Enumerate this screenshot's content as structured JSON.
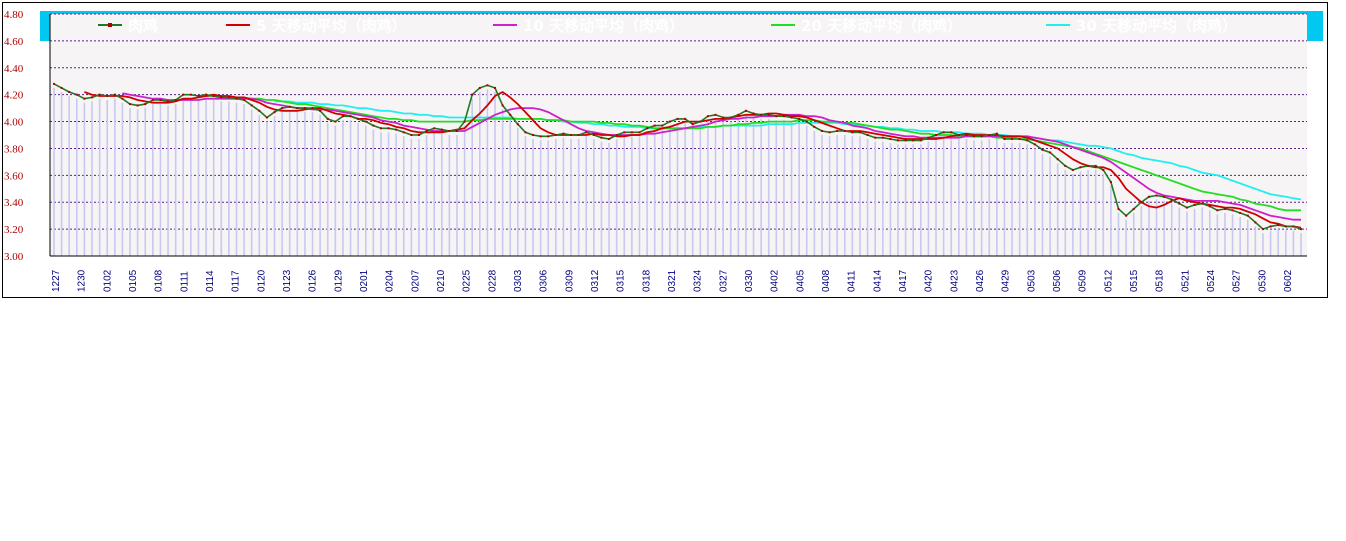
{
  "chart_data": {
    "type": "line",
    "title": "",
    "xlabel": "",
    "ylabel": "",
    "ylim": [
      3.0,
      4.8
    ],
    "y_ticks": [
      "3.00",
      "3.20",
      "3.40",
      "3.60",
      "3.80",
      "4.00",
      "4.20",
      "4.40",
      "4.60",
      "4.80"
    ],
    "x_tick_labels": [
      "1227",
      "1230",
      "0102",
      "0105",
      "0108",
      "0111",
      "0114",
      "0117",
      "0120",
      "0123",
      "0126",
      "0129",
      "0201",
      "0204",
      "0207",
      "0210",
      "0225",
      "0228",
      "0303",
      "0306",
      "0309",
      "0312",
      "0315",
      "0318",
      "0321",
      "0324",
      "0327",
      "0330",
      "0402",
      "0405",
      "0408",
      "0411",
      "0414",
      "0417",
      "0420",
      "0423",
      "0426",
      "0429",
      "0503",
      "0506",
      "0509",
      "0512",
      "0515",
      "0518",
      "0521",
      "0524",
      "0527",
      "0530",
      "0602"
    ],
    "grid": true,
    "legend_position": "top",
    "colors": {
      "legend_bg": "#00c8f0",
      "price": "#1f7a1f",
      "price_marker": "#b00000",
      "ma5": "#d00000",
      "ma10": "#cc22cc",
      "ma20": "#22dd22",
      "ma30": "#22eeee",
      "bars": "#c8c8f0",
      "grid": "#5a1f8a"
    },
    "series": [
      {
        "name": "肉鸡",
        "values": [
          4.28,
          4.25,
          4.22,
          4.2,
          4.17,
          4.18,
          4.2,
          4.19,
          4.2,
          4.17,
          4.13,
          4.12,
          4.13,
          4.16,
          4.16,
          4.15,
          4.16,
          4.2,
          4.2,
          4.19,
          4.2,
          4.19,
          4.18,
          4.18,
          4.17,
          4.16,
          4.12,
          4.08,
          4.03,
          4.07,
          4.1,
          4.11,
          4.1,
          4.1,
          4.1,
          4.08,
          4.02,
          4.0,
          4.04,
          4.04,
          4.02,
          4.0,
          3.97,
          3.95,
          3.95,
          3.94,
          3.92,
          3.9,
          3.9,
          3.93,
          3.95,
          3.94,
          3.93,
          3.93,
          4.0,
          4.2,
          4.25,
          4.27,
          4.25,
          4.12,
          4.05,
          3.98,
          3.92,
          3.9,
          3.89,
          3.89,
          3.9,
          3.91,
          3.9,
          3.9,
          3.92,
          3.9,
          3.88,
          3.87,
          3.9,
          3.92,
          3.92,
          3.92,
          3.95,
          3.97,
          3.97,
          4.0,
          4.02,
          4.02,
          3.98,
          4.0,
          4.04,
          4.05,
          4.03,
          4.03,
          4.05,
          4.08,
          4.06,
          4.05,
          4.05,
          4.04,
          4.04,
          4.03,
          4.02,
          4.0,
          3.96,
          3.93,
          3.92,
          3.93,
          3.93,
          3.92,
          3.92,
          3.9,
          3.88,
          3.88,
          3.87,
          3.86,
          3.86,
          3.86,
          3.86,
          3.88,
          3.9,
          3.92,
          3.92,
          3.9,
          3.9,
          3.89,
          3.89,
          3.9,
          3.91,
          3.87,
          3.87,
          3.87,
          3.86,
          3.83,
          3.79,
          3.77,
          3.72,
          3.67,
          3.64,
          3.66,
          3.67,
          3.67,
          3.64,
          3.55,
          3.35,
          3.3,
          3.35,
          3.4,
          3.44,
          3.45,
          3.44,
          3.42,
          3.39,
          3.36,
          3.38,
          3.39,
          3.37,
          3.34,
          3.35,
          3.34,
          3.32,
          3.3,
          3.25,
          3.2,
          3.22,
          3.23,
          3.22,
          3.22,
          3.2
        ]
      },
      {
        "name": "5 天移动平均（肉鸡）",
        "values": [
          null,
          null,
          null,
          null,
          4.22,
          4.2,
          4.19,
          4.19,
          4.19,
          4.19,
          4.18,
          4.16,
          4.15,
          4.14,
          4.14,
          4.14,
          4.15,
          4.17,
          4.17,
          4.18,
          4.19,
          4.2,
          4.19,
          4.19,
          4.18,
          4.18,
          4.16,
          4.14,
          4.11,
          4.09,
          4.08,
          4.08,
          4.08,
          4.09,
          4.1,
          4.1,
          4.08,
          4.06,
          4.05,
          4.04,
          4.02,
          4.02,
          4.01,
          3.99,
          3.98,
          3.96,
          3.95,
          3.93,
          3.92,
          3.92,
          3.92,
          3.92,
          3.93,
          3.94,
          3.95,
          4.01,
          4.06,
          4.12,
          4.19,
          4.22,
          4.18,
          4.13,
          4.07,
          4.01,
          3.95,
          3.92,
          3.9,
          3.9,
          3.9,
          3.9,
          3.9,
          3.91,
          3.9,
          3.9,
          3.89,
          3.89,
          3.9,
          3.9,
          3.92,
          3.93,
          3.95,
          3.96,
          3.98,
          4.0,
          4.0,
          4.0,
          4.01,
          4.02,
          4.02,
          4.03,
          4.04,
          4.05,
          4.05,
          4.05,
          4.06,
          4.06,
          4.05,
          4.04,
          4.04,
          4.03,
          4.01,
          3.99,
          3.97,
          3.95,
          3.93,
          3.93,
          3.93,
          3.92,
          3.91,
          3.9,
          3.89,
          3.88,
          3.87,
          3.87,
          3.87,
          3.87,
          3.87,
          3.88,
          3.89,
          3.9,
          3.91,
          3.9,
          3.9,
          3.9,
          3.9,
          3.89,
          3.89,
          3.89,
          3.88,
          3.86,
          3.84,
          3.82,
          3.8,
          3.76,
          3.72,
          3.69,
          3.67,
          3.66,
          3.66,
          3.64,
          3.58,
          3.5,
          3.45,
          3.4,
          3.37,
          3.36,
          3.38,
          3.41,
          3.43,
          3.41,
          3.4,
          3.39,
          3.38,
          3.37,
          3.36,
          3.36,
          3.35,
          3.33,
          3.31,
          3.28,
          3.25,
          3.24,
          3.22,
          3.22,
          3.21
        ]
      },
      {
        "name": "10 天移动平均（肉鸡）",
        "values": [
          null,
          null,
          null,
          null,
          null,
          null,
          null,
          null,
          null,
          4.21,
          4.2,
          4.19,
          4.18,
          4.17,
          4.17,
          4.16,
          4.16,
          4.16,
          4.16,
          4.16,
          4.17,
          4.17,
          4.17,
          4.17,
          4.17,
          4.17,
          4.17,
          4.16,
          4.14,
          4.13,
          4.12,
          4.11,
          4.1,
          4.1,
          4.09,
          4.09,
          4.09,
          4.08,
          4.07,
          4.06,
          4.05,
          4.04,
          4.03,
          4.01,
          4.0,
          3.99,
          3.97,
          3.96,
          3.95,
          3.94,
          3.93,
          3.93,
          3.93,
          3.93,
          3.93,
          3.96,
          3.99,
          4.02,
          4.05,
          4.07,
          4.09,
          4.1,
          4.1,
          4.1,
          4.09,
          4.07,
          4.04,
          4.01,
          3.98,
          3.95,
          3.93,
          3.92,
          3.91,
          3.9,
          3.9,
          3.9,
          3.9,
          3.9,
          3.91,
          3.91,
          3.92,
          3.93,
          3.94,
          3.95,
          3.96,
          3.97,
          3.98,
          4.0,
          4.01,
          4.02,
          4.02,
          4.03,
          4.03,
          4.04,
          4.04,
          4.04,
          4.05,
          4.05,
          4.05,
          4.04,
          4.04,
          4.03,
          4.01,
          4.0,
          3.99,
          3.97,
          3.96,
          3.95,
          3.93,
          3.92,
          3.91,
          3.9,
          3.89,
          3.89,
          3.88,
          3.88,
          3.88,
          3.88,
          3.88,
          3.88,
          3.89,
          3.89,
          3.89,
          3.89,
          3.89,
          3.89,
          3.89,
          3.89,
          3.89,
          3.88,
          3.87,
          3.86,
          3.85,
          3.83,
          3.81,
          3.79,
          3.77,
          3.75,
          3.73,
          3.7,
          3.66,
          3.62,
          3.58,
          3.54,
          3.5,
          3.47,
          3.45,
          3.44,
          3.43,
          3.42,
          3.41,
          3.41,
          3.41,
          3.41,
          3.4,
          3.39,
          3.38,
          3.36,
          3.34,
          3.32,
          3.3,
          3.29,
          3.28,
          3.27,
          3.27
        ]
      },
      {
        "name": "20 天移动平均（肉鸡）",
        "values": [
          null,
          null,
          null,
          null,
          null,
          null,
          null,
          null,
          null,
          null,
          null,
          null,
          null,
          null,
          null,
          null,
          null,
          null,
          null,
          4.19,
          4.19,
          4.19,
          4.18,
          4.18,
          4.18,
          4.18,
          4.17,
          4.17,
          4.16,
          4.16,
          4.15,
          4.14,
          4.13,
          4.13,
          4.12,
          4.11,
          4.1,
          4.09,
          4.08,
          4.07,
          4.06,
          4.05,
          4.04,
          4.03,
          4.02,
          4.02,
          4.01,
          4.01,
          4.0,
          4.0,
          4.0,
          4.0,
          4.0,
          4.0,
          4.0,
          4.01,
          4.01,
          4.02,
          4.02,
          4.02,
          4.02,
          4.02,
          4.02,
          4.02,
          4.02,
          4.01,
          4.01,
          4.01,
          4.0,
          4.0,
          4.0,
          4.0,
          3.99,
          3.99,
          3.98,
          3.98,
          3.97,
          3.97,
          3.96,
          3.95,
          3.95,
          3.95,
          3.95,
          3.95,
          3.95,
          3.95,
          3.96,
          3.96,
          3.97,
          3.97,
          3.98,
          3.98,
          3.99,
          3.99,
          4.0,
          4.0,
          4.0,
          4.0,
          4.01,
          4.01,
          4.01,
          4.0,
          4.0,
          4.0,
          3.99,
          3.99,
          3.98,
          3.97,
          3.96,
          3.95,
          3.94,
          3.94,
          3.93,
          3.92,
          3.91,
          3.91,
          3.9,
          3.9,
          3.9,
          3.89,
          3.89,
          3.89,
          3.89,
          3.89,
          3.88,
          3.88,
          3.88,
          3.87,
          3.87,
          3.86,
          3.85,
          3.84,
          3.83,
          3.82,
          3.81,
          3.8,
          3.78,
          3.76,
          3.74,
          3.72,
          3.7,
          3.68,
          3.66,
          3.64,
          3.62,
          3.6,
          3.58,
          3.56,
          3.54,
          3.52,
          3.5,
          3.48,
          3.47,
          3.46,
          3.45,
          3.44,
          3.42,
          3.41,
          3.39,
          3.38,
          3.37,
          3.35,
          3.34,
          3.34,
          3.34
        ]
      },
      {
        "name": "30 天移动平均（肉鸡）",
        "values": [
          null,
          null,
          null,
          null,
          null,
          null,
          null,
          null,
          null,
          null,
          null,
          null,
          null,
          null,
          null,
          null,
          null,
          null,
          null,
          null,
          null,
          null,
          null,
          null,
          null,
          null,
          null,
          null,
          null,
          4.15,
          4.15,
          4.15,
          4.14,
          4.14,
          4.14,
          4.13,
          4.13,
          4.12,
          4.12,
          4.11,
          4.1,
          4.1,
          4.09,
          4.08,
          4.08,
          4.07,
          4.06,
          4.06,
          4.05,
          4.05,
          4.04,
          4.04,
          4.03,
          4.03,
          4.03,
          4.03,
          4.03,
          4.03,
          4.03,
          4.03,
          4.03,
          4.02,
          4.02,
          4.02,
          4.02,
          4.01,
          4.01,
          4.0,
          4.0,
          3.99,
          3.99,
          3.98,
          3.98,
          3.97,
          3.97,
          3.96,
          3.96,
          3.96,
          3.95,
          3.95,
          3.95,
          3.95,
          3.95,
          3.95,
          3.96,
          3.96,
          3.96,
          3.96,
          3.97,
          3.97,
          3.97,
          3.97,
          3.97,
          3.97,
          3.98,
          3.98,
          3.98,
          3.98,
          3.99,
          3.99,
          3.99,
          3.99,
          3.99,
          3.99,
          3.98,
          3.98,
          3.97,
          3.97,
          3.96,
          3.96,
          3.95,
          3.95,
          3.94,
          3.94,
          3.93,
          3.93,
          3.93,
          3.92,
          3.92,
          3.92,
          3.91,
          3.91,
          3.91,
          3.9,
          3.9,
          3.9,
          3.89,
          3.89,
          3.88,
          3.88,
          3.87,
          3.86,
          3.86,
          3.85,
          3.84,
          3.83,
          3.82,
          3.82,
          3.81,
          3.8,
          3.78,
          3.76,
          3.75,
          3.73,
          3.72,
          3.71,
          3.7,
          3.69,
          3.67,
          3.66,
          3.64,
          3.62,
          3.61,
          3.6,
          3.58,
          3.56,
          3.54,
          3.52,
          3.5,
          3.48,
          3.46,
          3.45,
          3.44,
          3.43,
          3.42
        ]
      }
    ]
  }
}
